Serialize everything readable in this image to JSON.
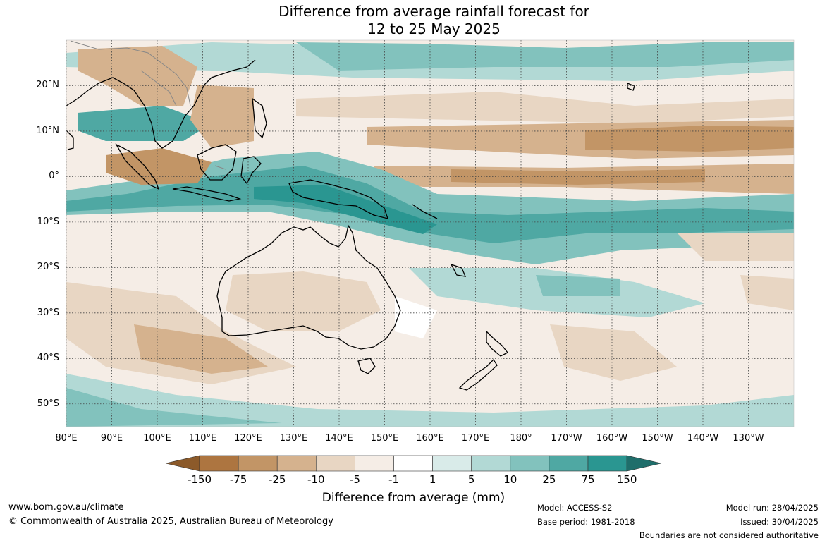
{
  "title": {
    "line1": "Difference from average rainfall forecast for",
    "line2": "12 to 25 May 2025"
  },
  "map": {
    "extent_lon": [
      80,
      240
    ],
    "extent_lat": [
      -55,
      30
    ],
    "lat_labels": [
      "20°N",
      "10°N",
      "0°",
      "10°S",
      "20°S",
      "30°S",
      "40°S",
      "50°S"
    ],
    "lat_values": [
      20,
      10,
      0,
      -10,
      -20,
      -30,
      -40,
      -50
    ],
    "lon_labels": [
      "80°E",
      "90°E",
      "100°E",
      "110°E",
      "120°E",
      "130°E",
      "140°E",
      "150°E",
      "160°E",
      "170°E",
      "180°",
      "170°W",
      "160°W",
      "150°W",
      "140°W",
      "130°W"
    ],
    "lon_values": [
      80,
      90,
      100,
      110,
      120,
      130,
      140,
      150,
      160,
      170,
      180,
      190,
      200,
      210,
      220,
      230
    ],
    "grid": "dotted"
  },
  "colorbar": {
    "tick_labels": [
      "-150",
      "-75",
      "-25",
      "-10",
      "-5",
      "-1",
      "1",
      "5",
      "10",
      "25",
      "75",
      "150"
    ],
    "colors": [
      "#8c5a2a",
      "#ad7540",
      "#c29566",
      "#d5b28e",
      "#e8d6c3",
      "#f5ede6",
      "#ffffff",
      "#d9ebe9",
      "#b2d9d5",
      "#82c2bd",
      "#4fa8a3",
      "#2a9691",
      "#1f6e6b"
    ],
    "label": "Difference from average (mm)"
  },
  "footer": {
    "website": "www.bom.gov.au/climate",
    "copyright": "© Commonwealth of Australia 2025, Australian Bureau of Meteorology",
    "model": "Model: ACCESS-S2",
    "base_period": "Base period: 1981-2018",
    "model_run": "Model run: 28/04/2025",
    "issued": "Issued: 30/04/2025",
    "boundaries": "Boundaries are not considered authoritative"
  }
}
